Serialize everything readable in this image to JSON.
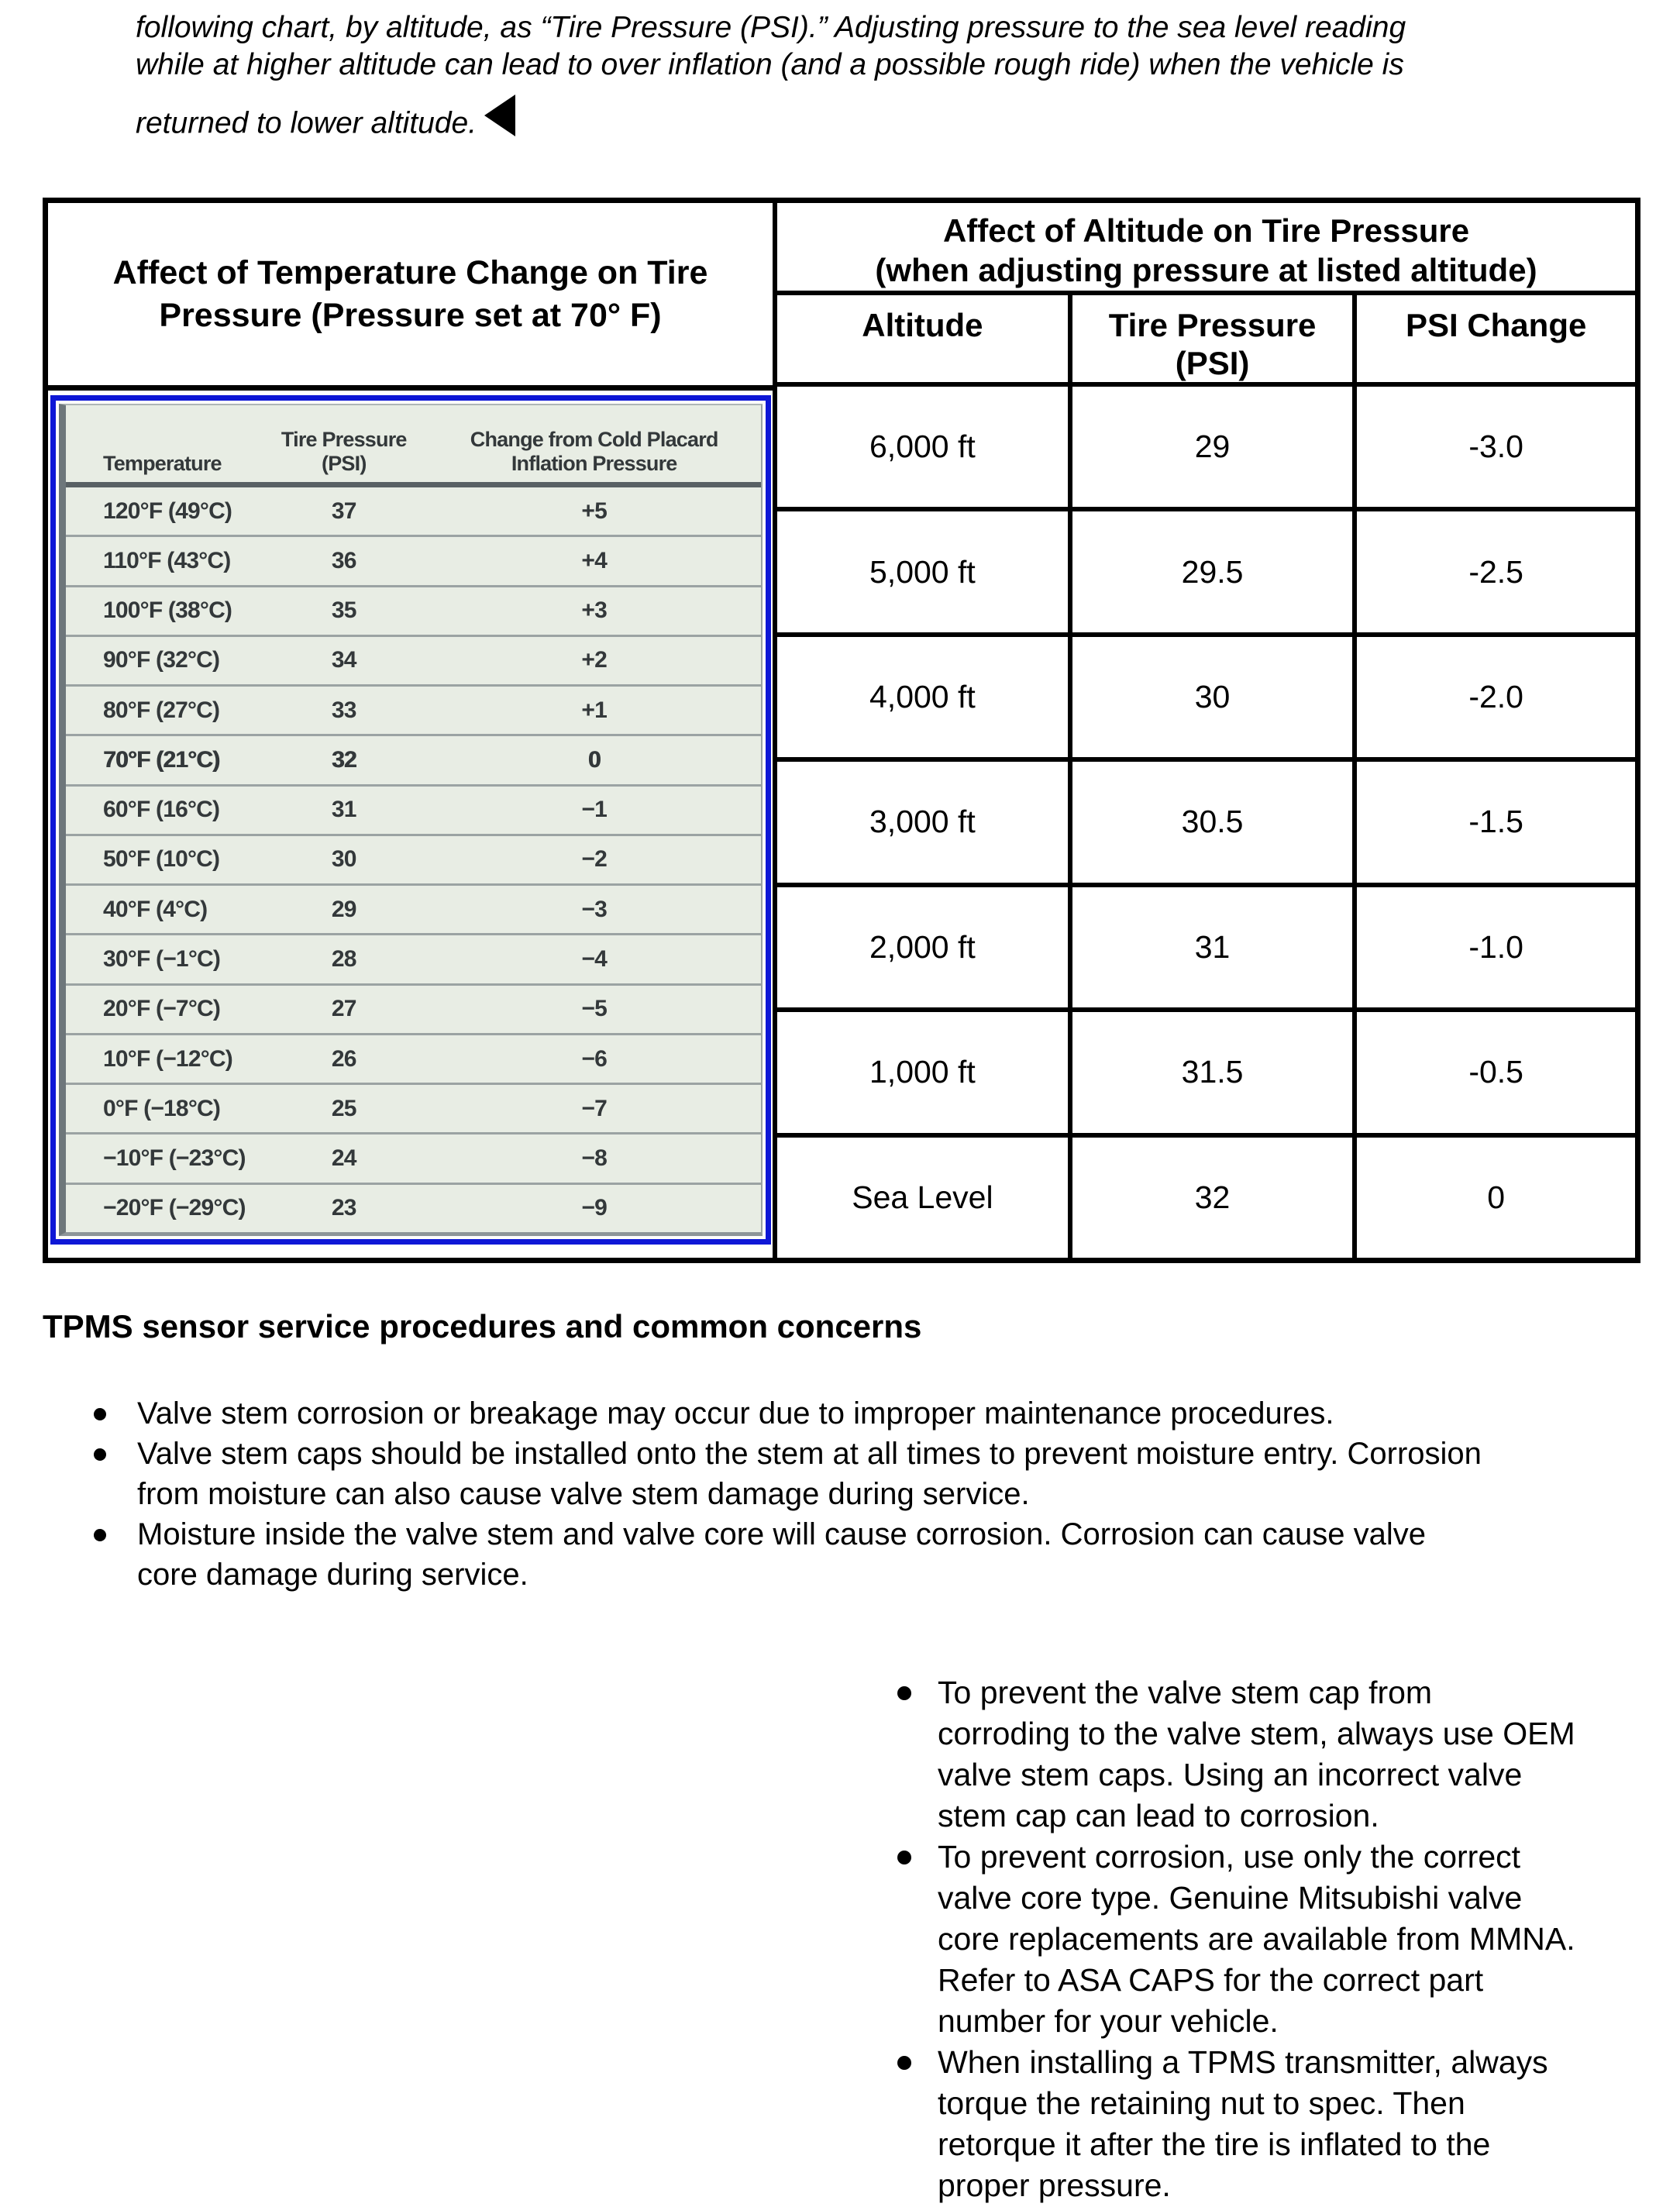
{
  "intro": {
    "lines": [
      "following chart, by altitude, as “Tire Pressure (PSI).” Adjusting pressure to the sea level reading",
      "while at higher altitude can lead to over inflation (and a possible rough ride) when the vehicle is"
    ],
    "last_line": "returned to lower altitude."
  },
  "temperature_table": {
    "title": "Affect of Temperature Change on Tire\nPressure (Pressure set at 70° F)",
    "headers": {
      "temperature": "Temperature",
      "pressure": "Tire Pressure\n(PSI)",
      "change": "Change from Cold Placard\nInflation Pressure"
    },
    "rows": [
      [
        "120°F (49°C)",
        "37",
        "+5"
      ],
      [
        "110°F (43°C)",
        "36",
        "+4"
      ],
      [
        "100°F (38°C)",
        "35",
        "+3"
      ],
      [
        "90°F (32°C)",
        "34",
        "+2"
      ],
      [
        "80°F (27°C)",
        "33",
        "+1"
      ],
      [
        "70°F (21°C)",
        "32",
        "0"
      ],
      [
        "60°F (16°C)",
        "31",
        "−1"
      ],
      [
        "50°F (10°C)",
        "30",
        "−2"
      ],
      [
        "40°F (4°C)",
        "29",
        "−3"
      ],
      [
        "30°F (−1°C)",
        "28",
        "−4"
      ],
      [
        "20°F (−7°C)",
        "27",
        "−5"
      ],
      [
        "10°F (−12°C)",
        "26",
        "−6"
      ],
      [
        "0°F (−18°C)",
        "25",
        "−7"
      ],
      [
        "−10°F (−23°C)",
        "24",
        "−8"
      ],
      [
        "−20°F (−29°C)",
        "23",
        "−9"
      ]
    ]
  },
  "altitude_table": {
    "title": "Affect of Altitude on Tire Pressure\n(when adjusting pressure at listed altitude)",
    "headers": {
      "altitude": "Altitude",
      "pressure": "Tire Pressure\n(PSI)",
      "change": "PSI Change"
    },
    "rows": [
      [
        "6,000 ft",
        "29",
        "-3.0"
      ],
      [
        "5,000 ft",
        "29.5",
        "-2.5"
      ],
      [
        "4,000 ft",
        "30",
        "-2.0"
      ],
      [
        "3,000 ft",
        "30.5",
        "-1.5"
      ],
      [
        "2,000 ft",
        "31",
        "-1.0"
      ],
      [
        "1,000 ft",
        "31.5",
        "-0.5"
      ],
      [
        "Sea Level",
        "32",
        "0"
      ]
    ]
  },
  "tpms_section": {
    "heading": "TPMS sensor service procedures and common concerns",
    "bullets": [
      "Valve stem corrosion or breakage may occur due to improper maintenance procedures.",
      "Valve stem caps should be installed onto the stem at all times to prevent moisture entry. Corrosion\nfrom moisture can also cause valve stem damage during service.",
      "Moisture inside the valve stem and valve core will cause corrosion. Corrosion can cause valve\ncore damage during service."
    ]
  },
  "notes_column": {
    "bullets": [
      "To prevent the valve stem cap from\ncorroding to the valve stem, always use OEM\nvalve stem caps. Using an incorrect valve\nstem cap can lead to corrosion.",
      "To prevent corrosion, use only the correct\nvalve core type. Genuine Mitsubishi valve\ncore replacements are available from MMNA.\nRefer to ASA CAPS for the correct part\nnumber for your vehicle.",
      "When installing a TPMS transmitter, always\ntorque the retaining nut to spec. Then\nretorque it after the tire is inflated to the\nproper pressure."
    ]
  },
  "colors": {
    "photo_frame_blue": "#0e17d6",
    "photo_background": "#e8ede4",
    "text": "#000000"
  }
}
